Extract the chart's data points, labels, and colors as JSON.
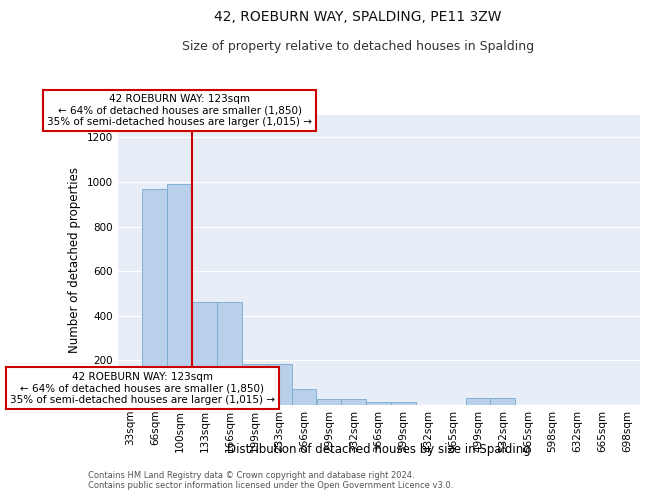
{
  "title": "42, ROEBURN WAY, SPALDING, PE11 3ZW",
  "subtitle": "Size of property relative to detached houses in Spalding",
  "xlabel": "Distribution of detached houses by size in Spalding",
  "ylabel": "Number of detached properties",
  "categories": [
    "33sqm",
    "66sqm",
    "100sqm",
    "133sqm",
    "166sqm",
    "199sqm",
    "233sqm",
    "266sqm",
    "299sqm",
    "332sqm",
    "366sqm",
    "399sqm",
    "432sqm",
    "465sqm",
    "499sqm",
    "532sqm",
    "565sqm",
    "598sqm",
    "632sqm",
    "665sqm",
    "698sqm"
  ],
  "values": [
    170,
    970,
    990,
    460,
    460,
    185,
    185,
    70,
    25,
    25,
    15,
    15,
    0,
    0,
    30,
    30,
    0,
    0,
    0,
    0,
    0
  ],
  "bar_color": "#b8d0ea",
  "bar_edge_color": "#7aaad0",
  "vline_color": "#cc0000",
  "annotation_text": "42 ROEBURN WAY: 123sqm\n← 64% of detached houses are smaller (1,850)\n35% of semi-detached houses are larger (1,015) →",
  "annotation_box_color": "#ffffff",
  "annotation_box_edge": "#cc0000",
  "ylim": [
    0,
    1300
  ],
  "yticks": [
    0,
    200,
    400,
    600,
    800,
    1000,
    1200
  ],
  "bg_color": "#e8eef8",
  "footer": "Contains HM Land Registry data © Crown copyright and database right 2024.\nContains public sector information licensed under the Open Government Licence v3.0.",
  "title_fontsize": 10,
  "subtitle_fontsize": 9,
  "xlabel_fontsize": 8.5,
  "ylabel_fontsize": 8.5,
  "tick_fontsize": 7.5,
  "footer_fontsize": 6.0
}
